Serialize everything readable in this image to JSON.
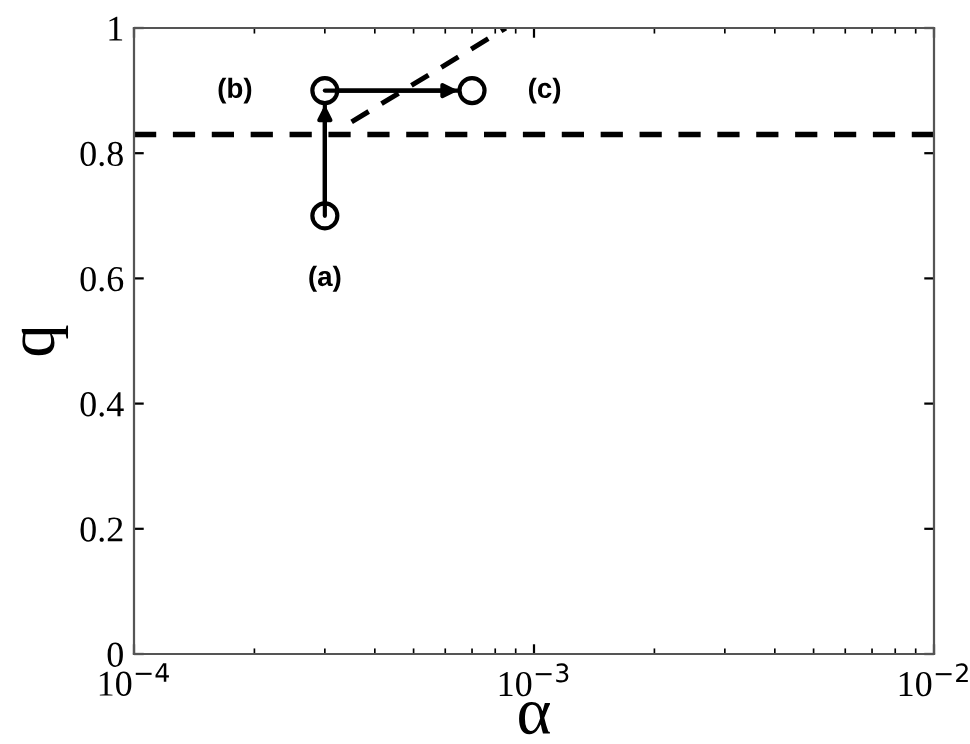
{
  "chart_data": {
    "type": "line",
    "xlabel": "α",
    "ylabel": "q",
    "log": "x",
    "xlim": [
      0.0001,
      0.01
    ],
    "ylim": [
      0,
      1
    ],
    "xticks": [
      {
        "value": 0.0001,
        "label": "10$^{−4}$"
      },
      {
        "value": 0.001,
        "label": "10$^{−3}$"
      },
      {
        "value": 0.01,
        "label": "10$^{−2}$"
      }
    ],
    "yticks": [
      0,
      0.2,
      0.4,
      0.6,
      0.8,
      1
    ],
    "grid": false,
    "legend": false,
    "series": [
      {
        "color": "#000000",
        "marker": "circle",
        "line_style": "solid",
        "x": [
          0.0003,
          0.0003,
          0.0007
        ],
        "values": [
          0.7,
          0.9,
          0.9
        ]
      },
      {
        "color": "#000000",
        "marker": "none",
        "line_style": "dashed",
        "x": [
          0.00035,
          0.00085
        ],
        "values": [
          0.85,
          1.0
        ]
      }
    ],
    "ref_lines": [
      {
        "axis": "y",
        "value": 0.83,
        "color": "#000000",
        "line_style": "dashed"
      }
    ],
    "annotations": [
      "(a)",
      "(b)",
      "(c)"
    ]
  }
}
